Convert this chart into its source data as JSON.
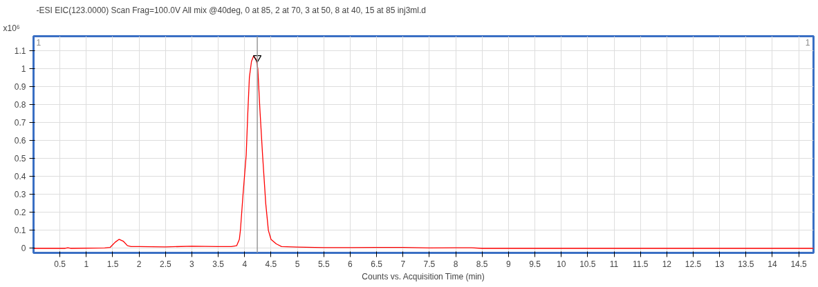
{
  "chart_data": {
    "type": "line",
    "title": "-ESI EIC(123.0000) Scan Frag=100.0V All mix @40deg, 0 at 85, 2 at 70, 3 at 50, 8 at 40, 15 at 85 inj3ml.d",
    "xlabel": "Counts vs. Acquisition Time (min)",
    "ylabel": "x10⁶",
    "annotations": [
      "1",
      "1"
    ],
    "series": [
      {
        "color": "#ff0000",
        "x": [
          0,
          0.6,
          0.65,
          0.7,
          1.35,
          1.45,
          1.5,
          1.55,
          1.62,
          1.7,
          1.78,
          1.85,
          2.0,
          2.5,
          3.0,
          3.5,
          3.75,
          3.85,
          3.9,
          3.92,
          3.97,
          4.03,
          4.06,
          4.09,
          4.13,
          4.17,
          4.22,
          4.25,
          4.29,
          4.34,
          4.4,
          4.45,
          4.5,
          4.6,
          4.7,
          5.0,
          5.5,
          6.0,
          6.5,
          7.0,
          7.5,
          8.0,
          8.3,
          8.5,
          9.4,
          10.0,
          14.78
        ],
        "values": [
          0,
          0,
          0.003,
          0,
          0.002,
          0.005,
          0.02,
          0.035,
          0.05,
          0.04,
          0.015,
          0.01,
          0.01,
          0.008,
          0.012,
          0.01,
          0.01,
          0.015,
          0.05,
          0.1,
          0.3,
          0.52,
          0.75,
          0.95,
          1.04,
          1.07,
          1.05,
          1.0,
          0.77,
          0.52,
          0.25,
          0.1,
          0.05,
          0.025,
          0.01,
          0.007,
          0.004,
          0.004,
          0.005,
          0.005,
          0.002,
          0.003,
          0.003,
          0,
          0,
          0,
          0
        ]
      },
      {
        "type": "scatter",
        "marker": "triangle",
        "color": "#000000",
        "x": [
          4.24
        ],
        "values": [
          1.06
        ]
      }
    ],
    "ref_lines": [
      {
        "axis": "x",
        "value": 4.24,
        "color": "#999999"
      }
    ],
    "xlim": [
      0,
      14.78
    ],
    "ylim": [
      -0.025,
      1.18
    ],
    "xticks": [
      0.5,
      1,
      1.5,
      2,
      2.5,
      3,
      3.5,
      4,
      4.5,
      5,
      5.5,
      6,
      6.5,
      7,
      7.5,
      8,
      8.5,
      9,
      9.5,
      10,
      10.5,
      11,
      11.5,
      12,
      12.5,
      13,
      13.5,
      14,
      14.5
    ],
    "yticks": [
      0,
      0.1,
      0.2,
      0.3,
      0.4,
      0.5,
      0.6,
      0.7,
      0.8,
      0.9,
      1,
      1.1
    ],
    "grid": true
  }
}
